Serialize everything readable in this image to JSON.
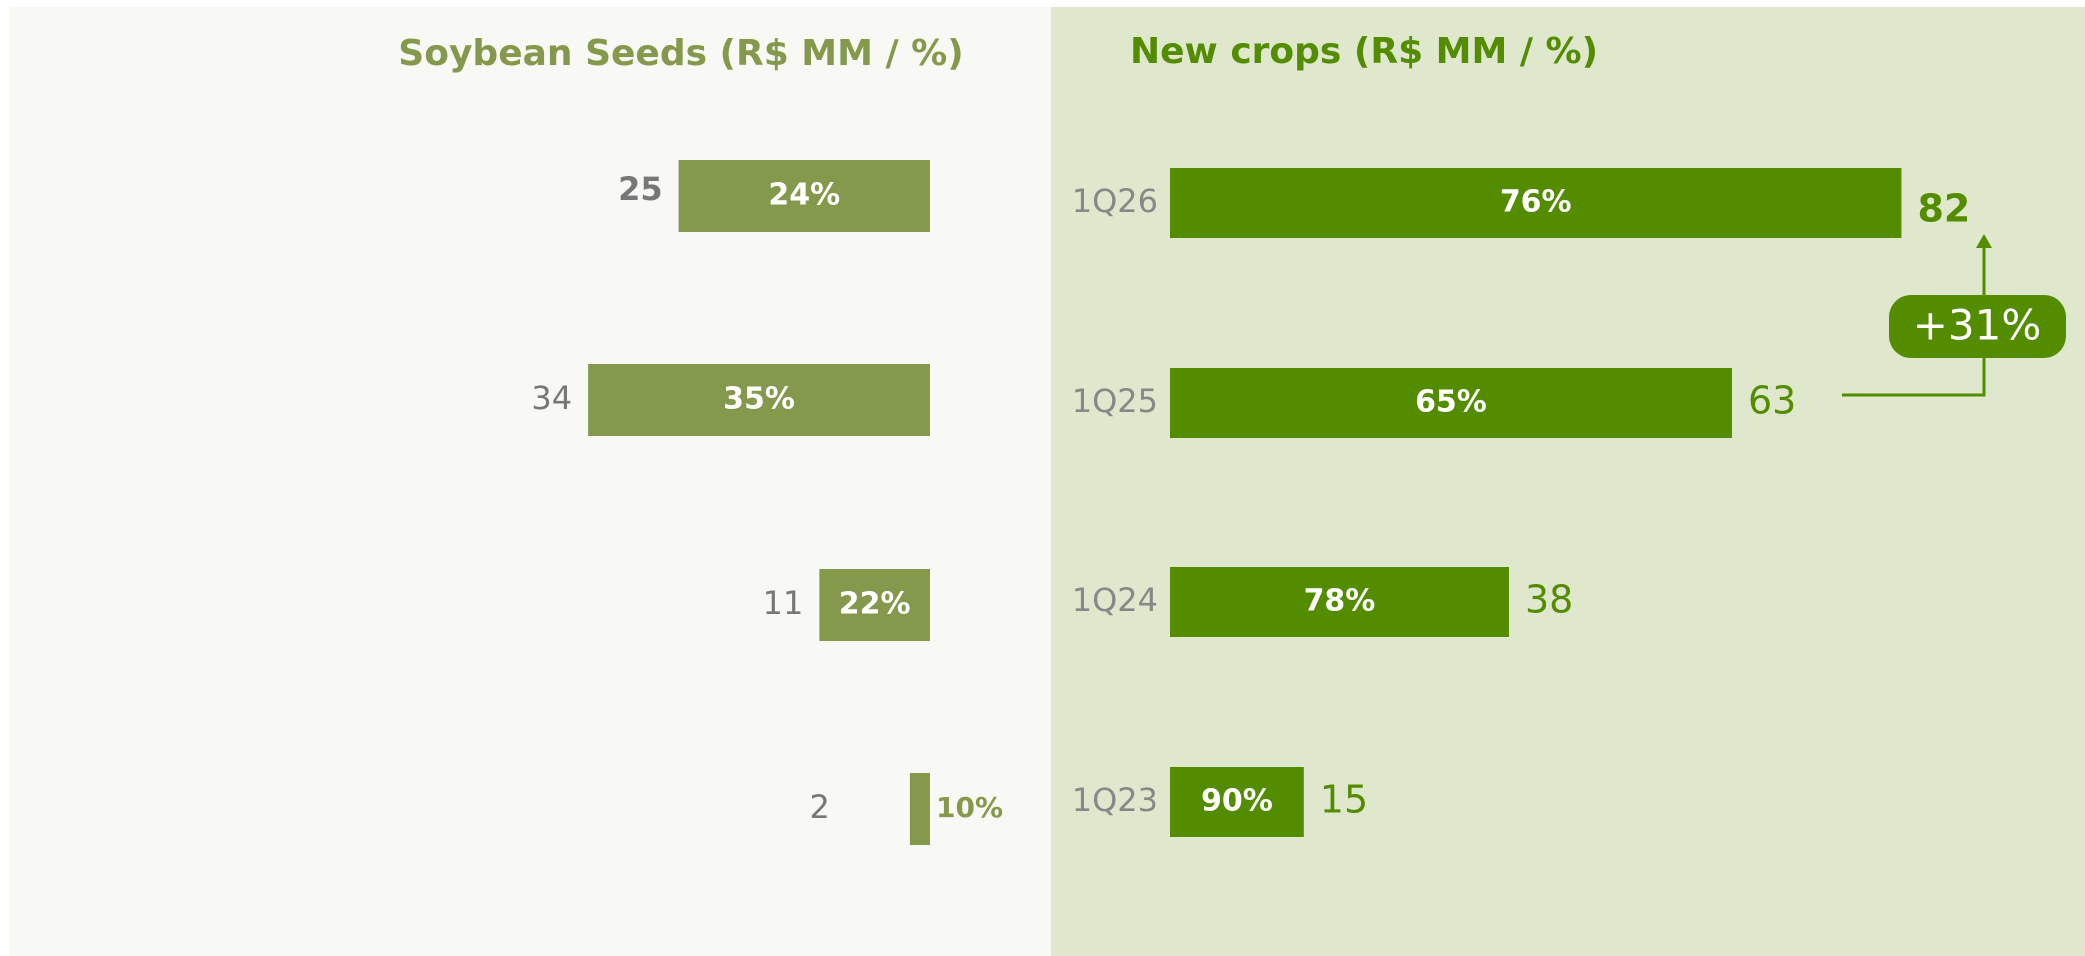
{
  "chart_data": [
    {
      "type": "bar",
      "orientation": "horizontal-left",
      "title": "Soybean Seeds (R$ MM / %)",
      "values": [
        25,
        34,
        11,
        2
      ],
      "shares": [
        "24%",
        "35%",
        "22%",
        "10%"
      ],
      "color": "#84994c",
      "xlim": [
        0,
        90
      ]
    },
    {
      "type": "bar",
      "orientation": "horizontal-right",
      "title": "New crops (R$ MM / %)",
      "categories": [
        "1Q26",
        "1Q25",
        "1Q24",
        "1Q23"
      ],
      "values": [
        82,
        63,
        38,
        15
      ],
      "shares": [
        "76%",
        "65%",
        "78%",
        "90%"
      ],
      "color": "#548c00",
      "xlim": [
        0,
        100
      ],
      "annotation": "+31%"
    }
  ]
}
